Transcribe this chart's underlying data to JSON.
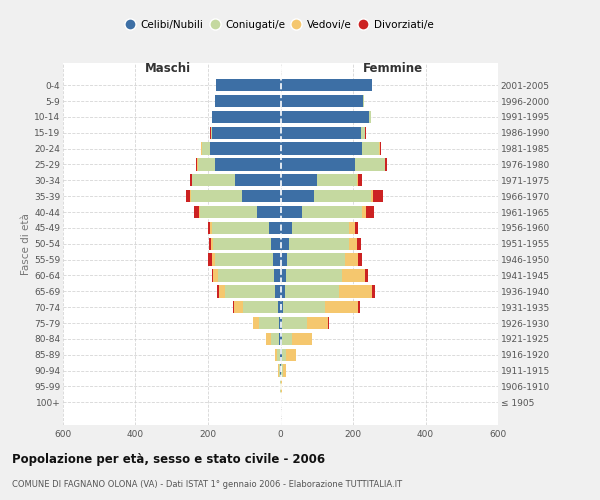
{
  "age_groups": [
    "100+",
    "95-99",
    "90-94",
    "85-89",
    "80-84",
    "75-79",
    "70-74",
    "65-69",
    "60-64",
    "55-59",
    "50-54",
    "45-49",
    "40-44",
    "35-39",
    "30-34",
    "25-29",
    "20-24",
    "15-19",
    "10-14",
    "5-9",
    "0-4"
  ],
  "birth_years": [
    "≤ 1905",
    "1906-1910",
    "1911-1915",
    "1916-1920",
    "1921-1925",
    "1926-1930",
    "1931-1935",
    "1936-1940",
    "1941-1945",
    "1946-1950",
    "1951-1955",
    "1956-1960",
    "1961-1965",
    "1966-1970",
    "1971-1975",
    "1976-1980",
    "1981-1985",
    "1986-1990",
    "1991-1995",
    "1996-2000",
    "2001-2005"
  ],
  "colors": {
    "celibi": "#3d6fa5",
    "coniugati": "#c5d9a0",
    "vedovi": "#f5c76e",
    "divorziati": "#cc2222"
  },
  "males": {
    "celibi": [
      0,
      0,
      2,
      2,
      3,
      5,
      8,
      14,
      18,
      20,
      25,
      32,
      65,
      105,
      125,
      180,
      195,
      188,
      188,
      182,
      178
    ],
    "coniugati": [
      0,
      1,
      3,
      8,
      22,
      55,
      95,
      138,
      155,
      160,
      162,
      158,
      158,
      142,
      118,
      48,
      22,
      5,
      2,
      0,
      0
    ],
    "vedovi": [
      0,
      1,
      3,
      5,
      15,
      15,
      25,
      18,
      12,
      8,
      5,
      4,
      3,
      2,
      2,
      1,
      1,
      0,
      0,
      0,
      0
    ],
    "divorziati": [
      0,
      0,
      0,
      0,
      0,
      2,
      3,
      5,
      5,
      12,
      6,
      5,
      12,
      12,
      5,
      3,
      2,
      1,
      0,
      0,
      0
    ]
  },
  "females": {
    "celibi": [
      0,
      0,
      2,
      3,
      4,
      5,
      8,
      12,
      15,
      18,
      24,
      32,
      58,
      92,
      102,
      205,
      225,
      222,
      245,
      228,
      252
    ],
    "coniugati": [
      0,
      1,
      5,
      12,
      28,
      68,
      115,
      148,
      155,
      160,
      165,
      158,
      168,
      158,
      108,
      82,
      48,
      12,
      5,
      2,
      0
    ],
    "vedovi": [
      0,
      2,
      8,
      28,
      55,
      58,
      92,
      92,
      62,
      36,
      22,
      15,
      9,
      5,
      4,
      2,
      1,
      0,
      0,
      0,
      0
    ],
    "divorziati": [
      0,
      0,
      0,
      0,
      0,
      2,
      4,
      8,
      8,
      12,
      10,
      10,
      22,
      28,
      10,
      5,
      2,
      1,
      0,
      0,
      0
    ]
  },
  "title": "Popolazione per età, sesso e stato civile - 2006",
  "subtitle": "COMUNE DI FAGNANO OLONA (VA) - Dati ISTAT 1° gennaio 2006 - Elaborazione TUTTITALIA.IT",
  "xlabel_left": "Maschi",
  "xlabel_right": "Femmine",
  "ylabel_left": "Fasce di età",
  "xlim": 600,
  "legend_labels": [
    "Celibi/Nubili",
    "Coniugati/e",
    "Vedovi/e",
    "Divorziati/e"
  ],
  "bg_color": "#f0f0f0",
  "plot_bg": "#ffffff",
  "grid_color": "#cccccc"
}
